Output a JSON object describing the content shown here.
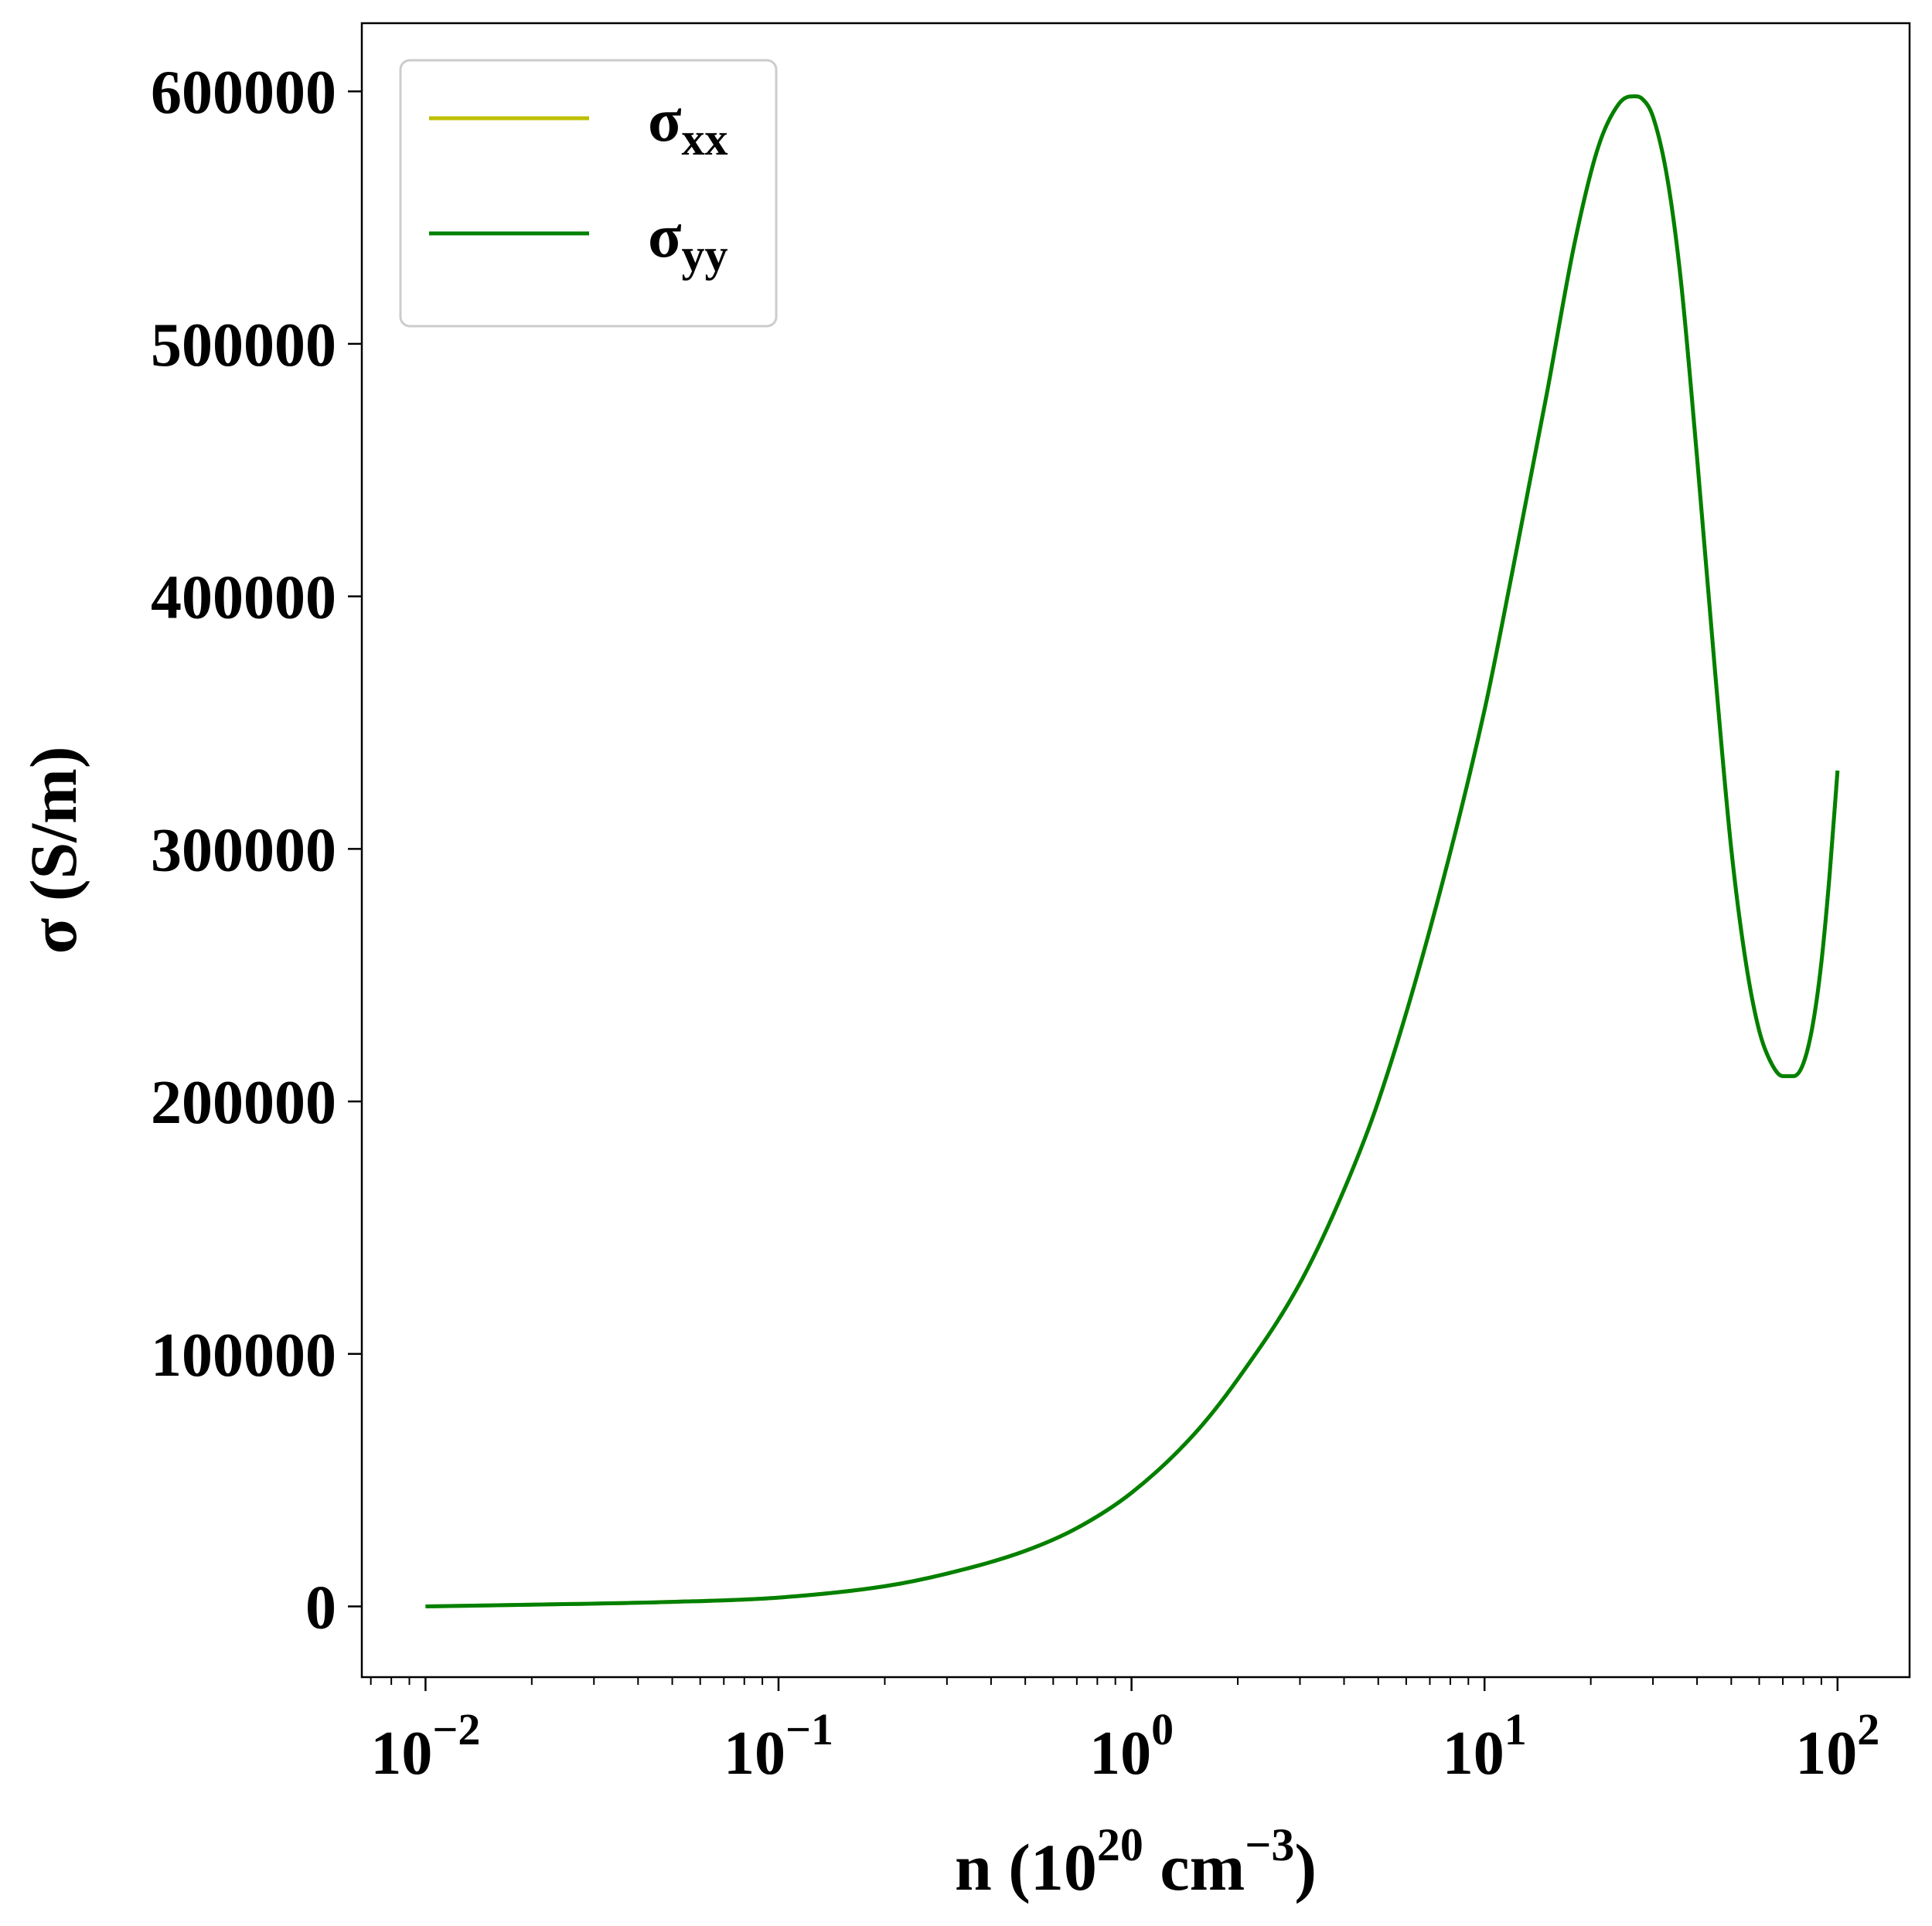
{
  "chart_data": {
    "type": "line",
    "xscale": "log",
    "xlim": [
      0.0066,
      160
    ],
    "ylim": [
      -28000,
      627000
    ],
    "grid": false,
    "legend_position": "upper-left",
    "xlabel": {
      "base": "n (10",
      "sup1": "20",
      "mid": " cm",
      "sup2": "−3",
      "end": ")"
    },
    "ylabel": "σ (S/m)",
    "yticks": [
      0,
      100000,
      200000,
      300000,
      400000,
      500000,
      600000
    ],
    "ytick_labels": [
      "0",
      "100000",
      "200000",
      "300000",
      "400000",
      "500000",
      "600000"
    ],
    "xticks": [
      0.01,
      0.1,
      1,
      10,
      100
    ],
    "xtick_labels": [
      {
        "base": "10",
        "exp": "−2"
      },
      {
        "base": "10",
        "exp": "−1"
      },
      {
        "base": "10",
        "exp": "0"
      },
      {
        "base": "10",
        "exp": "1"
      },
      {
        "base": "10",
        "exp": "2"
      }
    ],
    "series": [
      {
        "name": "σxx",
        "label_main": "σ",
        "label_sub": "xx",
        "color": "#bfbf00",
        "x": [
          0.01,
          0.02,
          0.05,
          0.1,
          0.2,
          0.3,
          0.5,
          0.7,
          1.0,
          1.5,
          2.0,
          3.0,
          4.0,
          5.0,
          7.0,
          10.0,
          12.0,
          15.0,
          18.0,
          21.0,
          24.0,
          26.0,
          28.0,
          30.0,
          33.0,
          36.0,
          40.0,
          45.0,
          50.0,
          55.0,
          60.0,
          65.0,
          70.0,
          75.0,
          80.0,
          85.0,
          90.0,
          95.0,
          100.0
        ],
        "y": [
          0,
          700,
          1800,
          3500,
          8000,
          13000,
          22000,
          31000,
          45000,
          68000,
          90000,
          128000,
          165000,
          200000,
          268000,
          355000,
          410000,
          480000,
          540000,
          578000,
          595000,
          598000,
          597000,
          590000,
          565000,
          525000,
          455000,
          370000,
          300000,
          255000,
          228000,
          215000,
          210000,
          210000,
          215000,
          230000,
          255000,
          290000,
          331000
        ]
      },
      {
        "name": "σyy",
        "label_main": "σ",
        "label_sub": "yy",
        "color": "#008000",
        "x": [
          0.01,
          0.02,
          0.05,
          0.1,
          0.2,
          0.3,
          0.5,
          0.7,
          1.0,
          1.5,
          2.0,
          3.0,
          4.0,
          5.0,
          7.0,
          10.0,
          12.0,
          15.0,
          18.0,
          21.0,
          24.0,
          26.0,
          28.0,
          30.0,
          33.0,
          36.0,
          40.0,
          45.0,
          50.0,
          55.0,
          60.0,
          65.0,
          70.0,
          75.0,
          80.0,
          85.0,
          90.0,
          95.0,
          100.0
        ],
        "y": [
          0,
          700,
          1800,
          3500,
          8000,
          13000,
          22000,
          31000,
          45000,
          68000,
          90000,
          128000,
          165000,
          200000,
          268000,
          355000,
          410000,
          480000,
          540000,
          578000,
          595000,
          598000,
          597000,
          590000,
          565000,
          525000,
          455000,
          370000,
          300000,
          255000,
          228000,
          215000,
          210000,
          210000,
          215000,
          230000,
          255000,
          290000,
          331000
        ]
      }
    ]
  }
}
